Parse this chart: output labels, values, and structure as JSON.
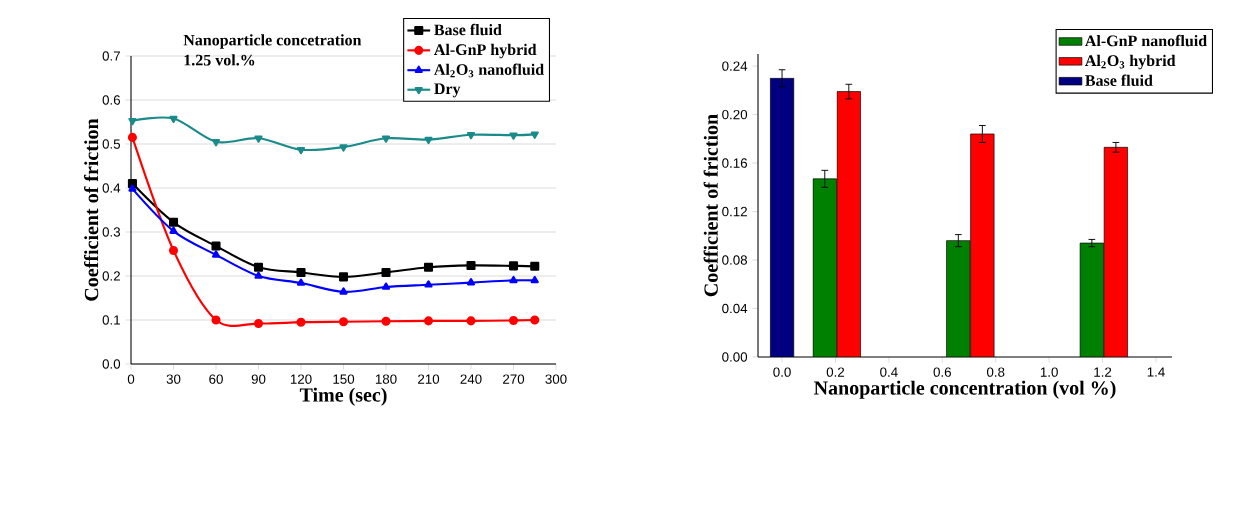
{
  "chart_data": [
    {
      "type": "line",
      "xlabel": "Time (sec)",
      "ylabel": "Coefficient of friction",
      "annotations": [
        "Nanoparticle concetration",
        "1.25 vol.%"
      ],
      "x": [
        1,
        30,
        60,
        90,
        120,
        150,
        180,
        210,
        240,
        270,
        285
      ],
      "series": [
        {
          "name": "Base fluid",
          "color": "#000000",
          "marker": "square",
          "values": [
            0.41,
            0.322,
            0.268,
            0.22,
            0.208,
            0.198,
            0.208,
            0.22,
            0.224,
            0.223,
            0.222
          ]
        },
        {
          "name": "Al-GnP hybrid",
          "color": "#ff0000",
          "marker": "circle",
          "values": [
            0.515,
            0.258,
            0.1,
            0.092,
            0.095,
            0.096,
            0.097,
            0.098,
            0.098,
            0.099,
            0.1
          ]
        },
        {
          "name": "Al$_{2}$O$_{3}$ nanofluid",
          "color": "#0000ff",
          "marker": "triangle",
          "values": [
            0.398,
            0.302,
            0.248,
            0.2,
            0.184,
            0.164,
            0.175,
            0.18,
            0.185,
            0.19,
            0.19
          ]
        },
        {
          "name": "Dry",
          "color": "#1a8a8a",
          "marker": "triangle_down",
          "values": [
            0.553,
            0.558,
            0.505,
            0.513,
            0.487,
            0.493,
            0.513,
            0.51,
            0.521,
            0.52,
            0.522
          ]
        }
      ],
      "xlim": [
        0,
        300
      ],
      "ylim": [
        0,
        0.7
      ],
      "xticks": [
        0,
        30,
        60,
        90,
        120,
        150,
        180,
        210,
        240,
        270,
        300
      ],
      "yticks": [
        {
          "value": 0,
          "label": "0.0"
        },
        0.1,
        0.2,
        0.3,
        0.4,
        0.5,
        0.6,
        0.7
      ],
      "grid": "y",
      "legend": "top right"
    },
    {
      "type": "bar",
      "xlabel": "Nanoparticle concentration (vol %)",
      "ylabel": "Coefficient of friction",
      "series": [
        {
          "name": "Al-GnP nanofluid",
          "color": "#008000",
          "x": [
            0.16,
            0.66,
            1.16
          ],
          "values": [
            0.147,
            0.096,
            0.094
          ],
          "errors": [
            0.007,
            0.005,
            0.003
          ]
        },
        {
          "name": "Al$_{2}$O$_{3}$ hybrid",
          "color": "#ff0000",
          "x": [
            0.25,
            0.75,
            1.25
          ],
          "values": [
            0.219,
            0.184,
            0.173
          ],
          "errors": [
            0.006,
            0.007,
            0.004
          ]
        },
        {
          "name": "Base fluid",
          "color": "#000080",
          "x": [
            0.0
          ],
          "values": [
            0.23
          ],
          "errors": [
            0.007
          ]
        }
      ],
      "xlim": [
        -0.09,
        1.46
      ],
      "ylim": [
        0,
        0.25
      ],
      "xticks": [
        {
          "value": 0,
          "label": "0.0"
        },
        {
          "value": 0.2,
          "label": "0.2"
        },
        {
          "value": 0.4,
          "label": "0.4"
        },
        {
          "value": 0.6,
          "label": "0.6"
        },
        {
          "value": 0.8,
          "label": "0.8"
        },
        {
          "value": 1,
          "label": "1.0"
        },
        {
          "value": 1.2,
          "label": "1.2"
        },
        {
          "value": 1.4,
          "label": "1.4"
        }
      ],
      "yticks": [
        {
          "value": 0,
          "label": "0.00"
        },
        {
          "value": 0.04,
          "label": "0.04"
        },
        {
          "value": 0.08,
          "label": "0.08"
        },
        {
          "value": 0.12,
          "label": "0.12"
        },
        {
          "value": 0.16,
          "label": "0.16"
        },
        {
          "value": 0.2,
          "label": "0.20"
        },
        {
          "value": 0.24,
          "label": "0.24"
        }
      ],
      "legend": "top right"
    }
  ]
}
